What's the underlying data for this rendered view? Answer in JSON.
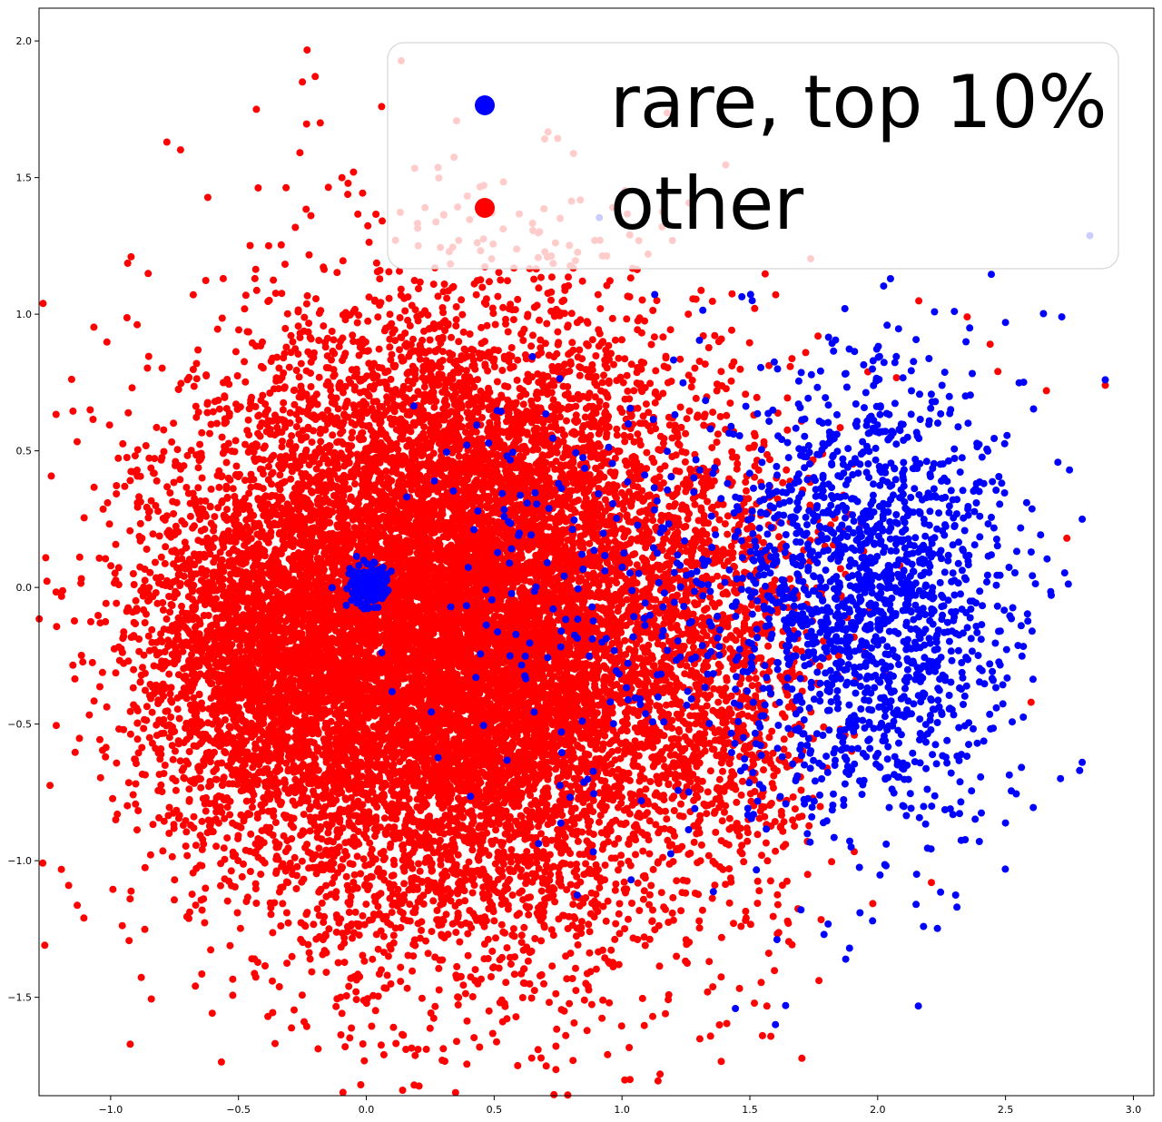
{
  "chart_data": {
    "type": "scatter",
    "title": "",
    "xlabel": "",
    "ylabel": "",
    "xlim": [
      -1.28,
      3.08
    ],
    "ylim": [
      -1.86,
      2.12
    ],
    "xticks": [
      -1.0,
      -0.5,
      0.0,
      0.5,
      1.0,
      1.5,
      2.0,
      2.5,
      3.0
    ],
    "yticks": [
      -1.5,
      -1.0,
      -0.5,
      0.0,
      0.5,
      1.0,
      1.5,
      2.0
    ],
    "xtick_labels": [
      "−1.0",
      "−0.5",
      "0.0",
      "0.5",
      "1.0",
      "1.5",
      "2.0",
      "2.5",
      "3.0"
    ],
    "ytick_labels": [
      "−1.5",
      "−1.0",
      "−0.5",
      "0.0",
      "0.5",
      "1.0",
      "1.5",
      "2.0"
    ],
    "grid": false,
    "legend_placement": "top-right",
    "legend_font_size_note": "very large",
    "series": [
      {
        "name": "rare, top 10%",
        "color": "#0000ff",
        "clusters": [
          {
            "cx": 1.95,
            "cy": -0.05,
            "sx": 0.28,
            "sy": 0.42,
            "n": 1700
          },
          {
            "cx": 0.01,
            "cy": 0.01,
            "sx": 0.035,
            "sy": 0.035,
            "n": 260
          },
          {
            "cx": 0.95,
            "cy": -0.05,
            "sx": 0.35,
            "sy": 0.45,
            "n": 220
          }
        ],
        "points": [
          [
            2.89,
            0.76
          ],
          [
            2.72,
            0.99
          ],
          [
            2.8,
            0.25
          ],
          [
            2.75,
            0.43
          ],
          [
            2.79,
            -0.67
          ],
          [
            2.8,
            -0.64
          ],
          [
            1.6,
            -1.6
          ],
          [
            1.64,
            -1.53
          ],
          [
            1.89,
            -1.32
          ],
          [
            1.79,
            -1.27
          ],
          [
            2.05,
            1.13
          ],
          [
            2.5,
            0.97
          ],
          [
            2.3,
            1.01
          ],
          [
            2.15,
            -1.16
          ],
          [
            2.31,
            -1.17
          ],
          [
            1.7,
            -1.18
          ],
          [
            1.98,
            -1.22
          ]
        ]
      },
      {
        "name": "other",
        "color": "#ff0000",
        "clusters": [
          {
            "cx": 0.35,
            "cy": -0.15,
            "sx": 0.5,
            "sy": 0.55,
            "n": 14000
          },
          {
            "cx": -0.45,
            "cy": -0.25,
            "sx": 0.22,
            "sy": 0.3,
            "n": 1500
          },
          {
            "cx": 1.4,
            "cy": -0.3,
            "sx": 0.2,
            "sy": 0.45,
            "n": 800
          }
        ],
        "points": [
          [
            -1.08,
            0.65
          ],
          [
            -1.02,
            -0.62
          ],
          [
            -0.98,
            -0.85
          ],
          [
            -0.75,
            -1.07
          ],
          [
            -0.1,
            -1.5
          ],
          [
            -0.04,
            -1.48
          ],
          [
            -0.22,
            -1.36
          ],
          [
            0.78,
            -1.64
          ],
          [
            0.48,
            -1.55
          ],
          [
            0.53,
            -1.51
          ],
          [
            0.95,
            -1.52
          ],
          [
            1.17,
            -1.56
          ],
          [
            1.12,
            -1.57
          ],
          [
            -0.25,
            1.85
          ],
          [
            -0.2,
            1.87
          ],
          [
            0.06,
            1.76
          ],
          [
            -0.05,
            1.52
          ],
          [
            -0.18,
            1.7
          ],
          [
            2.35,
            0.99
          ],
          [
            2.47,
            0.79
          ],
          [
            2.66,
            0.72
          ],
          [
            2.89,
            0.74
          ],
          [
            2.74,
            0.18
          ],
          [
            2.6,
            -0.42
          ],
          [
            2.44,
            0.89
          ],
          [
            -0.78,
            1.63
          ],
          [
            -0.92,
            1.21
          ],
          [
            2.21,
            -1.08
          ],
          [
            -0.43,
            1.75
          ]
        ]
      }
    ]
  }
}
